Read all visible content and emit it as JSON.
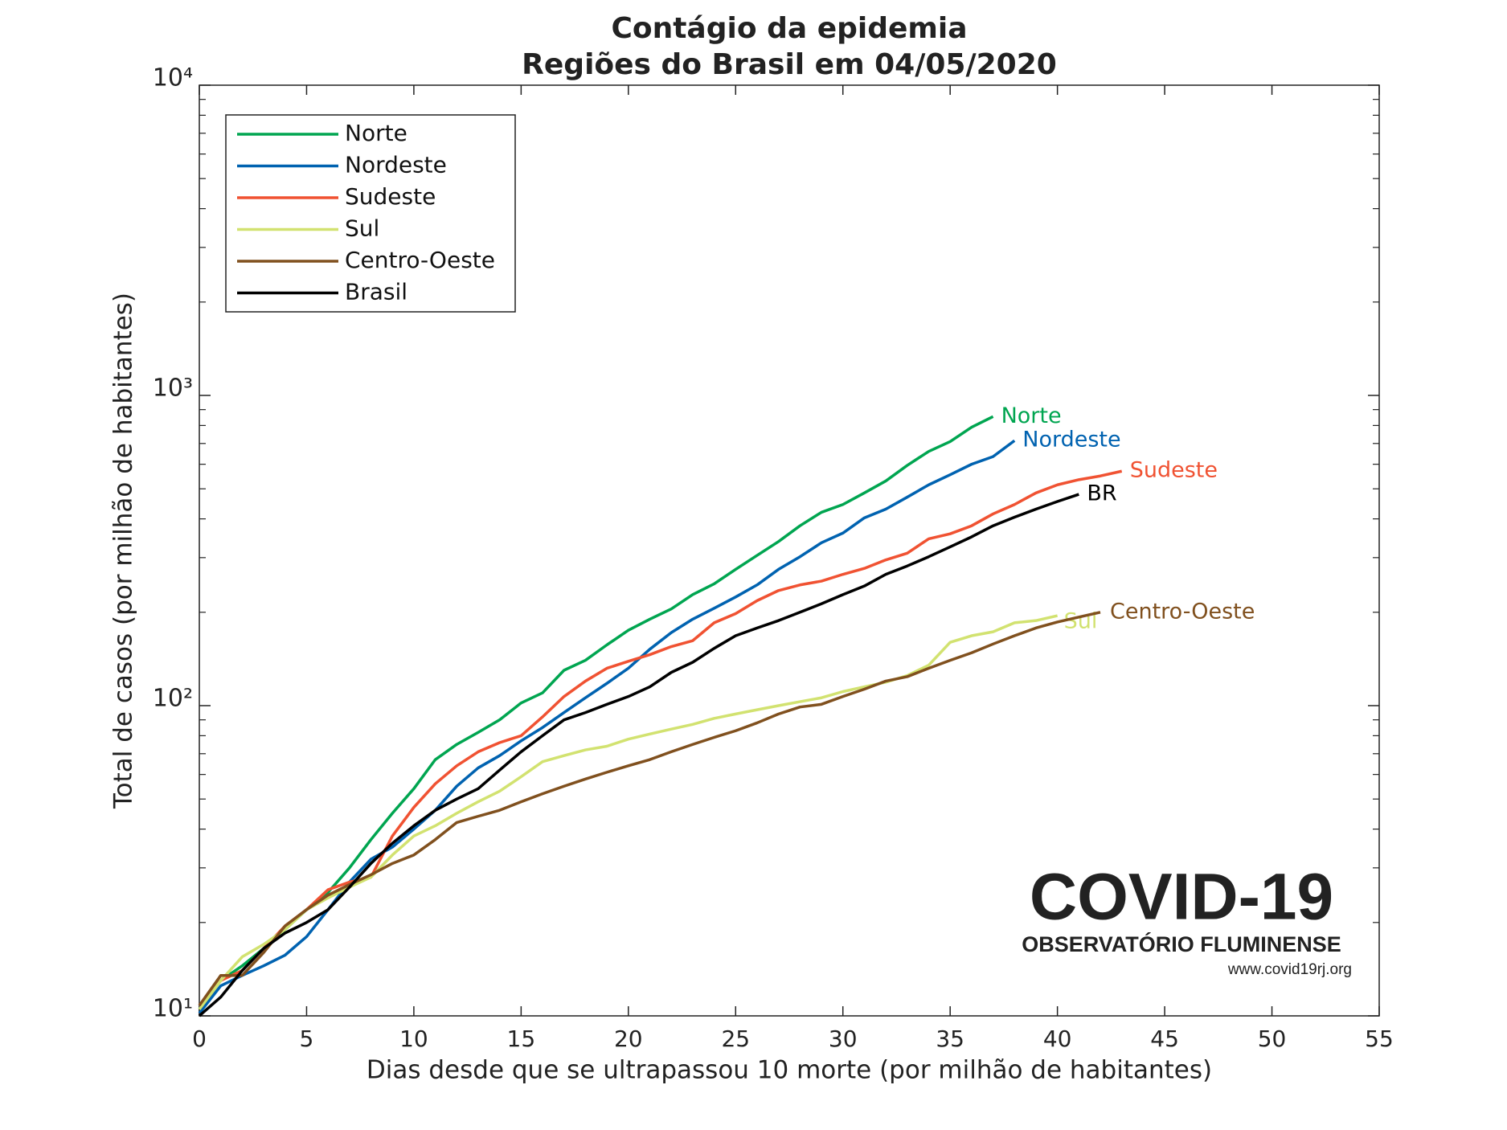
{
  "chart_data": {
    "type": "line",
    "title": "Contágio da epidemia",
    "subtitle": "Regiões do Brasil em 04/05/2020",
    "x_label": "Dias desde que se ultrapassou 10 morte (por milhão de habitantes)",
    "y_label": "Total de casos (por milhão de habitantes)",
    "xlim": [
      0,
      55
    ],
    "xticks": [
      0,
      5,
      10,
      15,
      20,
      25,
      30,
      35,
      40,
      45,
      50,
      55
    ],
    "ylim": [
      10,
      10000
    ],
    "log_y": true,
    "yticks": [
      {
        "value": 10,
        "label": "10¹"
      },
      {
        "value": 100,
        "label": "10²"
      },
      {
        "value": 1000,
        "label": "10³"
      },
      {
        "value": 10000,
        "label": "10⁴"
      }
    ],
    "minor_yticks": [
      20,
      30,
      40,
      50,
      60,
      70,
      80,
      90,
      200,
      300,
      400,
      500,
      600,
      700,
      800,
      900,
      2000,
      3000,
      4000,
      5000,
      6000,
      7000,
      8000,
      9000
    ],
    "legend": "upper left",
    "series": [
      {
        "name": "Norte",
        "label": "Norte",
        "color": "#00a550",
        "values": [
          10.5,
          13,
          14.5,
          16.5,
          19,
          22,
          25,
          30,
          37,
          45,
          54,
          67,
          75,
          82,
          90,
          102,
          110,
          130,
          140,
          157,
          175,
          190,
          205,
          228,
          247,
          275,
          305,
          338,
          380,
          420,
          445,
          485,
          530,
          595,
          660,
          710,
          790,
          855
        ]
      },
      {
        "name": "Nordeste",
        "label": "Nordeste",
        "color": "#0062b0",
        "values": [
          10.2,
          12.5,
          13.5,
          14.5,
          15.7,
          18,
          22,
          27,
          32,
          35,
          40,
          46,
          55,
          63,
          69,
          77,
          85,
          95,
          106,
          118,
          132,
          152,
          172,
          190,
          206,
          224,
          245,
          275,
          302,
          335,
          360,
          403,
          430,
          470,
          515,
          555,
          600,
          635,
          715
        ]
      },
      {
        "name": "Sudeste",
        "label": "Sudeste",
        "color": "#f05232",
        "values": [
          10.8,
          13,
          14,
          16.5,
          19.5,
          22,
          25.5,
          27,
          28,
          38,
          47,
          56,
          64,
          71,
          76,
          80,
          92,
          107,
          120,
          132,
          139,
          146,
          155,
          162,
          185,
          198,
          218,
          235,
          245,
          252,
          265,
          277,
          295,
          310,
          345,
          358,
          380,
          415,
          445,
          485,
          515,
          535,
          550,
          570
        ]
      },
      {
        "name": "Sul",
        "label": "Sul",
        "color": "#d2e270",
        "values": [
          10.5,
          13,
          15.5,
          17,
          19,
          22,
          24,
          26,
          28,
          33,
          38,
          41,
          45,
          49,
          53,
          59,
          66,
          69,
          72,
          74,
          78,
          81,
          84,
          87,
          91,
          94,
          97,
          100,
          103,
          106,
          111,
          115,
          119,
          125,
          135,
          160,
          168,
          173,
          185,
          188,
          195
        ]
      },
      {
        "name": "Centro-Oeste",
        "label": "Centro-Oeste",
        "color": "#80501e",
        "values": [
          10.8,
          13.5,
          13.5,
          16,
          19.5,
          22,
          24.5,
          26.5,
          28.5,
          31,
          33,
          37,
          42,
          44,
          46,
          49,
          52,
          55,
          58,
          61,
          64,
          67,
          71,
          75,
          79,
          83,
          88,
          94,
          99,
          101,
          107,
          113,
          120,
          124,
          132,
          140,
          148,
          158,
          168,
          178,
          186,
          193,
          200
        ]
      },
      {
        "name": "Brasil",
        "label": "BR",
        "color": "#000000",
        "values": [
          10,
          11.5,
          14,
          16.5,
          18.5,
          20,
          22,
          26,
          31,
          36,
          41,
          46,
          50,
          54,
          62,
          71,
          80,
          90,
          95,
          101,
          107,
          115,
          128,
          138,
          153,
          168,
          178,
          188,
          200,
          213,
          228,
          243,
          265,
          282,
          302,
          325,
          350,
          380,
          405,
          430,
          455,
          480
        ]
      }
    ]
  },
  "logo": {
    "title": "COVID-19",
    "subtitle": "OBSERVATÓRIO FLUMINENSE",
    "url": "www.covid19rj.org"
  }
}
